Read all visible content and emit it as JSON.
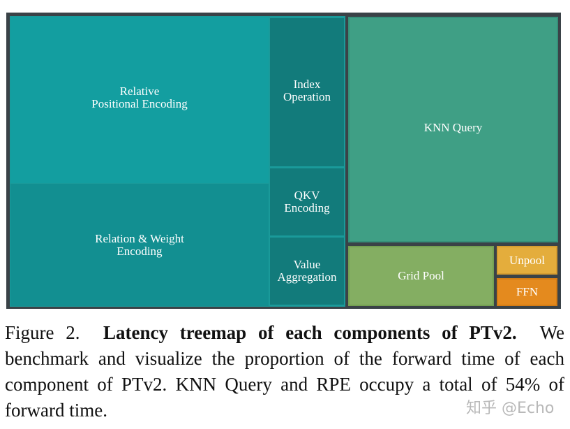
{
  "chart_data": {
    "type": "treemap",
    "groups": [
      {
        "items": [
          {
            "label": "Relative\nPositional Encoding",
            "color": "#139ea0"
          },
          {
            "label": "Relation & Weight\nEncoding",
            "color": "#128f91"
          },
          {
            "label": "Index\nOperation",
            "color": "#127b7b"
          },
          {
            "label": "QKV\nEncoding",
            "color": "#127b7b"
          },
          {
            "label": "Value\nAggregation",
            "color": "#127b7b"
          }
        ]
      },
      {
        "items": [
          {
            "label": "KNN Query",
            "color": "#3f9f85"
          },
          {
            "label": "Grid Pool",
            "color": "#84ae62"
          },
          {
            "label": "Unpool",
            "color": "#e4ad3c"
          },
          {
            "label": "FFN",
            "color": "#e48a1e"
          }
        ]
      }
    ]
  },
  "caption": {
    "prefix": "Figure 2.",
    "bold": "Latency treemap of each components of PTv2.",
    "body": "We benchmark and visualize the proportion of the forward time of each component of PTv2. KNN Query and RPE occupy a total of 54% of forward time."
  },
  "watermark": "知乎 @Echo"
}
